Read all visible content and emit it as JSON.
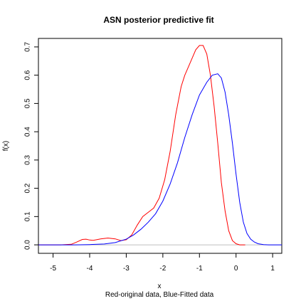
{
  "chart_data": {
    "type": "line",
    "title": "ASN posterior predictive fit",
    "xlabel": "x",
    "sublabel": "Red-original data, Blue-Fitted data",
    "ylabel": "f(x)",
    "xlim": [
      -5.4,
      1.25
    ],
    "ylim": [
      -0.03,
      0.73
    ],
    "x_ticks": [
      "-5",
      "-4",
      "-3",
      "-2",
      "-1",
      "0",
      "1"
    ],
    "x_tick_values": [
      -5,
      -4,
      -3,
      -2,
      -1,
      0,
      1
    ],
    "y_ticks": [
      "0.0",
      "0.1",
      "0.2",
      "0.3",
      "0.4",
      "0.5",
      "0.6",
      "0.7"
    ],
    "y_tick_values": [
      0.0,
      0.1,
      0.2,
      0.3,
      0.4,
      0.5,
      0.6,
      0.7
    ],
    "grid": false,
    "horizontal_reference_line": 0,
    "series": [
      {
        "color": "#ff0000",
        "points": [
          [
            -5.4,
            0.0
          ],
          [
            -4.8,
            0.0
          ],
          [
            -4.5,
            0.002
          ],
          [
            -4.35,
            0.01
          ],
          [
            -4.2,
            0.019
          ],
          [
            -4.1,
            0.02
          ],
          [
            -4.0,
            0.017
          ],
          [
            -3.9,
            0.016
          ],
          [
            -3.7,
            0.021
          ],
          [
            -3.5,
            0.024
          ],
          [
            -3.3,
            0.021
          ],
          [
            -3.15,
            0.015
          ],
          [
            -3.0,
            0.018
          ],
          [
            -2.85,
            0.035
          ],
          [
            -2.7,
            0.07
          ],
          [
            -2.55,
            0.1
          ],
          [
            -2.4,
            0.115
          ],
          [
            -2.25,
            0.13
          ],
          [
            -2.1,
            0.165
          ],
          [
            -1.95,
            0.23
          ],
          [
            -1.8,
            0.33
          ],
          [
            -1.65,
            0.46
          ],
          [
            -1.5,
            0.56
          ],
          [
            -1.4,
            0.6
          ],
          [
            -1.3,
            0.63
          ],
          [
            -1.2,
            0.66
          ],
          [
            -1.1,
            0.69
          ],
          [
            -1.0,
            0.705
          ],
          [
            -0.9,
            0.705
          ],
          [
            -0.8,
            0.675
          ],
          [
            -0.7,
            0.6
          ],
          [
            -0.6,
            0.49
          ],
          [
            -0.5,
            0.36
          ],
          [
            -0.4,
            0.22
          ],
          [
            -0.3,
            0.12
          ],
          [
            -0.2,
            0.05
          ],
          [
            -0.1,
            0.015
          ],
          [
            0.0,
            0.004
          ],
          [
            0.1,
            0.0
          ],
          [
            0.25,
            0.0
          ]
        ]
      },
      {
        "color": "#0000ff",
        "points": [
          [
            -5.4,
            0.0
          ],
          [
            -4.4,
            0.0
          ],
          [
            -4.0,
            0.001
          ],
          [
            -3.6,
            0.003
          ],
          [
            -3.3,
            0.008
          ],
          [
            -3.0,
            0.02
          ],
          [
            -2.8,
            0.035
          ],
          [
            -2.6,
            0.055
          ],
          [
            -2.4,
            0.08
          ],
          [
            -2.2,
            0.11
          ],
          [
            -2.0,
            0.155
          ],
          [
            -1.8,
            0.215
          ],
          [
            -1.6,
            0.29
          ],
          [
            -1.4,
            0.38
          ],
          [
            -1.2,
            0.46
          ],
          [
            -1.0,
            0.53
          ],
          [
            -0.8,
            0.575
          ],
          [
            -0.65,
            0.6
          ],
          [
            -0.5,
            0.605
          ],
          [
            -0.4,
            0.59
          ],
          [
            -0.3,
            0.54
          ],
          [
            -0.2,
            0.46
          ],
          [
            -0.1,
            0.36
          ],
          [
            0.0,
            0.25
          ],
          [
            0.1,
            0.15
          ],
          [
            0.2,
            0.08
          ],
          [
            0.3,
            0.04
          ],
          [
            0.4,
            0.02
          ],
          [
            0.5,
            0.01
          ],
          [
            0.6,
            0.004
          ],
          [
            0.75,
            0.001
          ],
          [
            0.9,
            0.0
          ],
          [
            1.25,
            0.0
          ]
        ]
      }
    ]
  }
}
